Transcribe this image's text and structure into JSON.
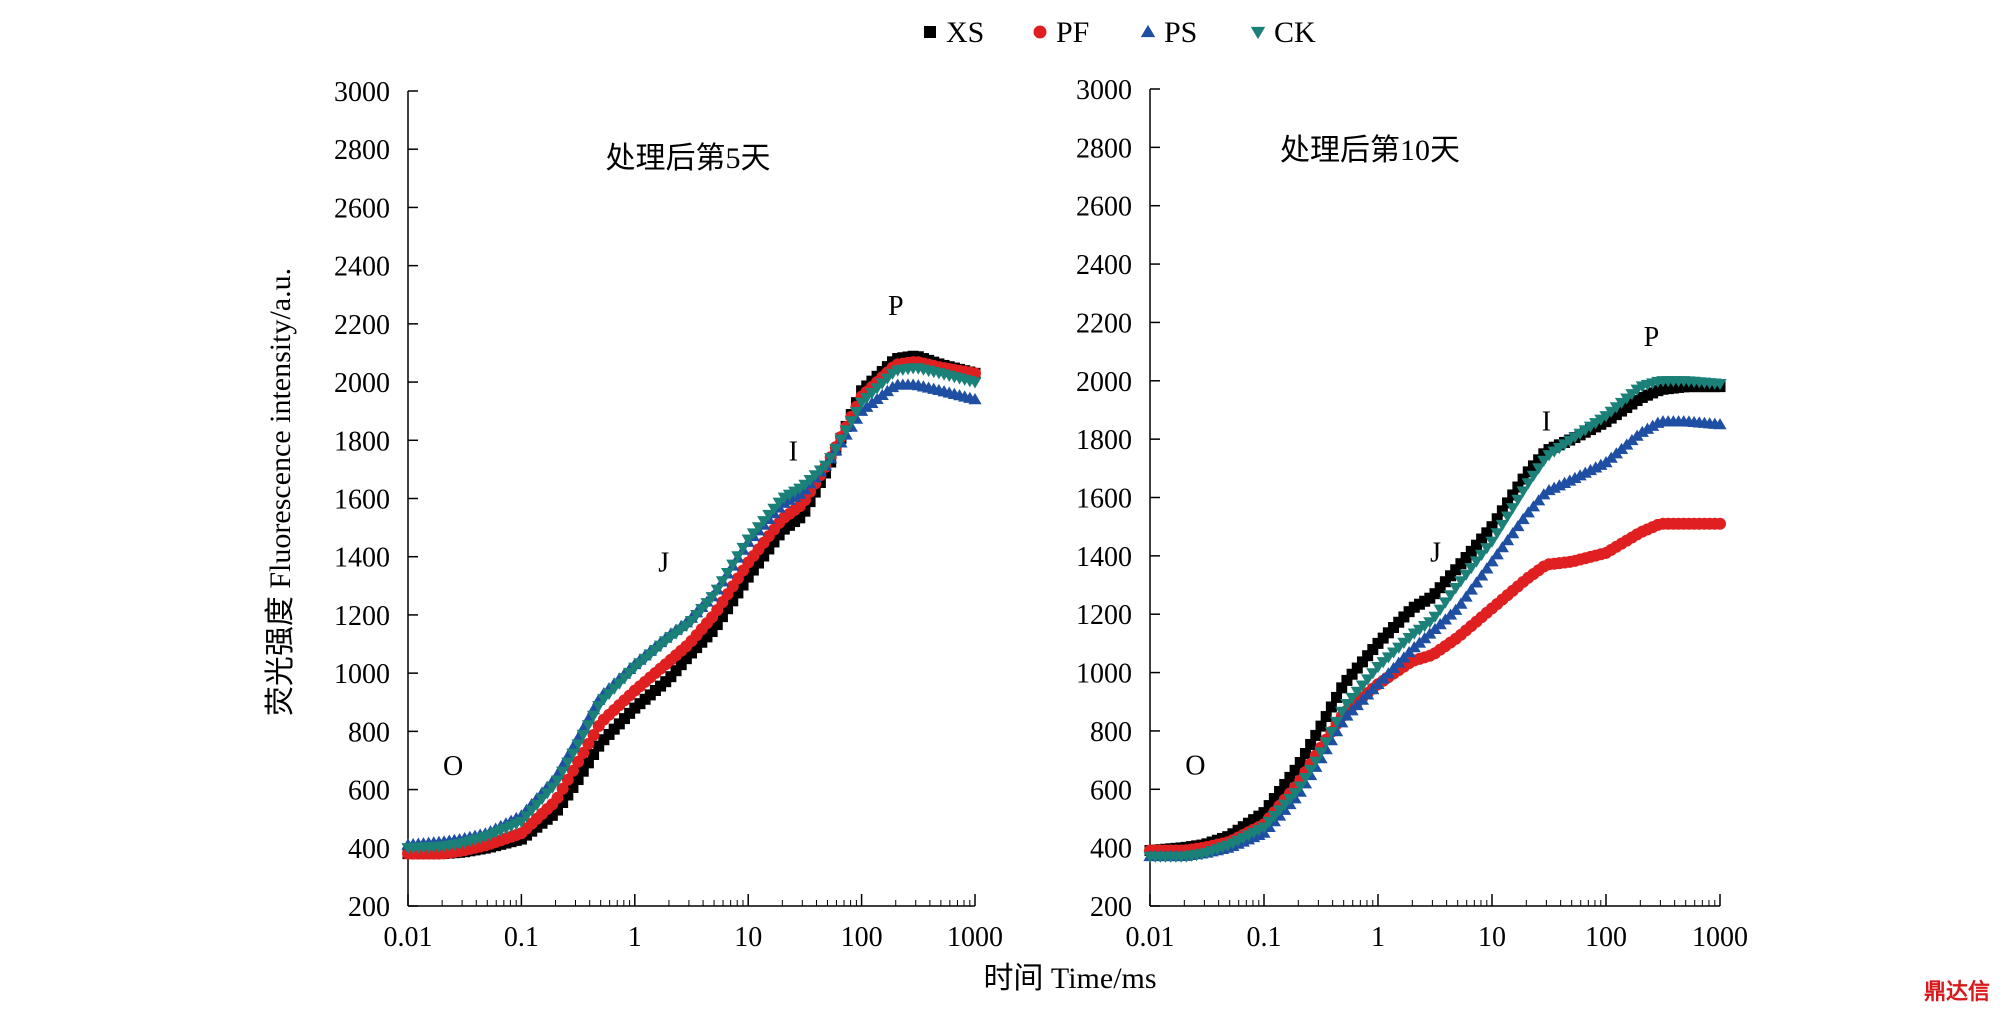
{
  "legend": {
    "items": [
      {
        "name": "XS",
        "color": "#000000",
        "marker": "square"
      },
      {
        "name": "PF",
        "color": "#e02020",
        "marker": "circle"
      },
      {
        "name": "PS",
        "color": "#1f4fa3",
        "marker": "triangle-up"
      },
      {
        "name": "CK",
        "color": "#1a8078",
        "marker": "triangle-down"
      }
    ]
  },
  "ylabel": "荧光强度 Fluorescence intensity/a.u.",
  "xlabel": "时间 Time/ms",
  "watermark": "鼎达信",
  "chart_data": [
    {
      "type": "scatter",
      "title": "处理后第5天",
      "xscale": "log",
      "xlim": [
        0.01,
        1000
      ],
      "ylim": [
        200,
        3000
      ],
      "xticks": [
        "0.01",
        "0.1",
        "1",
        "10",
        "100",
        "1000"
      ],
      "yticks": [
        200,
        400,
        600,
        800,
        1000,
        1200,
        1400,
        1600,
        1800,
        2000,
        2200,
        2400,
        2600,
        2800,
        3000
      ],
      "x": [
        0.01,
        0.02,
        0.03,
        0.05,
        0.1,
        0.2,
        0.3,
        0.5,
        1,
        2,
        3,
        5,
        10,
        20,
        30,
        50,
        100,
        200,
        300,
        500,
        1000
      ],
      "annotations": [
        {
          "text": "O",
          "x": 0.025,
          "y": 650
        },
        {
          "text": "J",
          "x": 1.8,
          "y": 1350
        },
        {
          "text": "I",
          "x": 25,
          "y": 1730
        },
        {
          "text": "P",
          "x": 200,
          "y": 2230
        }
      ],
      "series": [
        {
          "name": "XS",
          "values": [
            380,
            380,
            385,
            400,
            430,
            520,
            620,
            760,
            880,
            980,
            1060,
            1150,
            1330,
            1490,
            1540,
            1700,
            1970,
            2080,
            2090,
            2060,
            2030
          ]
        },
        {
          "name": "PF",
          "values": [
            380,
            380,
            390,
            410,
            450,
            560,
            680,
            830,
            940,
            1040,
            1100,
            1200,
            1380,
            1530,
            1580,
            1720,
            1950,
            2060,
            2070,
            2050,
            2030
          ]
        },
        {
          "name": "PS",
          "values": [
            410,
            420,
            430,
            450,
            510,
            640,
            760,
            920,
            1030,
            1130,
            1180,
            1270,
            1450,
            1580,
            1620,
            1720,
            1900,
            1990,
            1990,
            1970,
            1940
          ]
        },
        {
          "name": "CK",
          "values": [
            400,
            405,
            415,
            440,
            490,
            620,
            740,
            900,
            1020,
            1120,
            1170,
            1270,
            1460,
            1600,
            1640,
            1720,
            1930,
            2040,
            2050,
            2030,
            2000
          ]
        }
      ]
    },
    {
      "type": "scatter",
      "title": "处理后第10天",
      "xscale": "log",
      "xlim": [
        0.01,
        1000
      ],
      "ylim": [
        200,
        3000
      ],
      "xticks": [
        "0.01",
        "0.1",
        "1",
        "10",
        "100",
        "1000"
      ],
      "yticks": [
        200,
        400,
        600,
        800,
        1000,
        1200,
        1400,
        1600,
        1800,
        2000,
        2200,
        2400,
        2600,
        2800,
        3000
      ],
      "x": [
        0.01,
        0.02,
        0.03,
        0.05,
        0.1,
        0.2,
        0.3,
        0.5,
        1,
        2,
        3,
        5,
        10,
        20,
        30,
        50,
        100,
        200,
        300,
        500,
        1000
      ],
      "annotations": [
        {
          "text": "O",
          "x": 0.025,
          "y": 650
        },
        {
          "text": "J",
          "x": 3.2,
          "y": 1380
        },
        {
          "text": "I",
          "x": 30,
          "y": 1830
        },
        {
          "text": "P",
          "x": 250,
          "y": 2120
        }
      ],
      "series": [
        {
          "name": "XS",
          "values": [
            390,
            400,
            410,
            440,
            520,
            680,
            800,
            960,
            1100,
            1220,
            1260,
            1360,
            1500,
            1680,
            1760,
            1800,
            1860,
            1940,
            1970,
            1980,
            1980
          ]
        },
        {
          "name": "PF",
          "values": [
            390,
            390,
            400,
            420,
            480,
            620,
            730,
            860,
            960,
            1040,
            1060,
            1120,
            1220,
            1320,
            1370,
            1380,
            1410,
            1480,
            1510,
            1510,
            1510
          ]
        },
        {
          "name": "PS",
          "values": [
            370,
            370,
            380,
            400,
            450,
            580,
            690,
            840,
            960,
            1080,
            1140,
            1220,
            1380,
            1540,
            1620,
            1660,
            1720,
            1820,
            1860,
            1860,
            1850
          ]
        },
        {
          "name": "CK",
          "values": [
            370,
            370,
            380,
            410,
            470,
            600,
            710,
            880,
            1020,
            1130,
            1180,
            1300,
            1450,
            1640,
            1740,
            1800,
            1880,
            1980,
            2000,
            2000,
            1990
          ]
        }
      ]
    }
  ]
}
